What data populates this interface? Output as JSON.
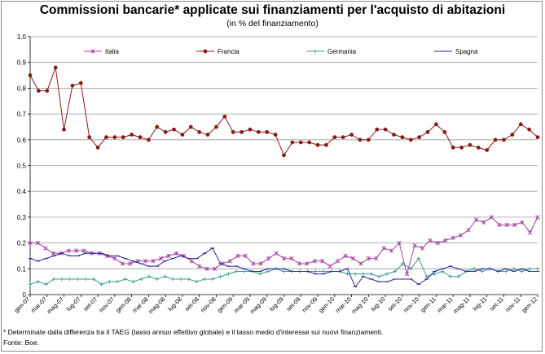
{
  "header": {
    "title": "Commissioni bancarie* applicate sui finanziamenti per l'acquisto di abitazioni",
    "subtitle": "(in % del finanziamento)"
  },
  "footer": {
    "note": "* Determinate dalla differenza tra il TAEG (tasso annuo effettivo globale) e il tasso medio d'interesse sui nuovi finanziamenti.",
    "source": "Fonte: Boe."
  },
  "chart_data": {
    "type": "line",
    "title": "Commissioni bancarie* applicate sui finanziamenti per l'acquisto di abitazioni",
    "subtitle": "(in % del finanziamento)",
    "xlabel": "",
    "ylabel": "",
    "ylim": [
      0,
      1
    ],
    "y_ticks": [
      "0",
      "0.1",
      "0.2",
      "0.3",
      "0.4",
      "0.5",
      "0.6",
      "0.7",
      "0.8",
      "0.9",
      "1.0"
    ],
    "grid": "horizontal",
    "legend_position": "top",
    "x_tick_labels": [
      "gen-07",
      "mar-07",
      "mag-07",
      "lug-07",
      "set-07",
      "nov-07",
      "gen-08",
      "mar-08",
      "mag-08",
      "lug-08",
      "set-08",
      "nov-08",
      "gen-09",
      "mar-09",
      "mag-09",
      "lug-09",
      "set-09",
      "nov-09",
      "gen-10",
      "mar-10",
      "mag-10",
      "lug-10",
      "set-10",
      "nov-10",
      "gen-11",
      "mar-11",
      "mag-11",
      "lug-11",
      "set-11",
      "nov-11",
      "gen-12"
    ],
    "series": [
      {
        "name": "Italia",
        "color": "#a040a0",
        "marker": "star",
        "values": [
          0.2,
          0.2,
          0.18,
          0.16,
          0.16,
          0.17,
          0.17,
          0.17,
          0.16,
          0.16,
          0.15,
          0.14,
          0.12,
          0.12,
          0.13,
          0.13,
          0.13,
          0.14,
          0.15,
          0.16,
          0.15,
          0.13,
          0.11,
          0.1,
          0.1,
          0.12,
          0.13,
          0.15,
          0.15,
          0.12,
          0.12,
          0.14,
          0.16,
          0.14,
          0.14,
          0.12,
          0.12,
          0.13,
          0.13,
          0.11,
          0.13,
          0.15,
          0.14,
          0.12,
          0.14,
          0.14,
          0.18,
          0.17,
          0.2,
          0.08,
          0.19,
          0.18,
          0.21,
          0.2,
          0.21,
          0.22,
          0.23,
          0.25,
          0.29,
          0.28,
          0.3,
          0.27,
          0.27,
          0.27,
          0.28,
          0.24,
          0.3
        ]
      },
      {
        "name": "Francia",
        "color": "#8b1a1a",
        "marker": "circle",
        "values": [
          0.85,
          0.79,
          0.79,
          0.88,
          0.64,
          0.81,
          0.82,
          0.61,
          0.57,
          0.61,
          0.61,
          0.61,
          0.62,
          0.61,
          0.6,
          0.65,
          0.63,
          0.64,
          0.62,
          0.65,
          0.63,
          0.62,
          0.65,
          0.69,
          0.63,
          0.63,
          0.64,
          0.63,
          0.63,
          0.62,
          0.54,
          0.59,
          0.59,
          0.59,
          0.58,
          0.58,
          0.61,
          0.61,
          0.62,
          0.6,
          0.6,
          0.64,
          0.64,
          0.62,
          0.61,
          0.6,
          0.61,
          0.63,
          0.66,
          0.63,
          0.57,
          0.57,
          0.58,
          0.57,
          0.56,
          0.6,
          0.6,
          0.62,
          0.66,
          0.64,
          0.61
        ]
      },
      {
        "name": "Germania",
        "color": "#3a9a8a",
        "marker": "plus",
        "values": [
          0.04,
          0.05,
          0.04,
          0.06,
          0.06,
          0.06,
          0.06,
          0.06,
          0.06,
          0.04,
          0.05,
          0.05,
          0.06,
          0.05,
          0.06,
          0.07,
          0.06,
          0.07,
          0.06,
          0.06,
          0.06,
          0.05,
          0.06,
          0.06,
          0.07,
          0.08,
          0.09,
          0.09,
          0.09,
          0.08,
          0.09,
          0.1,
          0.09,
          0.09,
          0.09,
          0.09,
          0.09,
          0.09,
          0.09,
          0.09,
          0.08,
          0.08,
          0.08,
          0.08,
          0.07,
          0.08,
          0.09,
          0.12,
          0.1,
          0.14,
          0.07,
          0.08,
          0.09,
          0.07,
          0.07,
          0.09,
          0.1,
          0.09,
          0.1,
          0.09,
          0.09,
          0.1,
          0.09,
          0.1,
          0.1
        ]
      },
      {
        "name": "Spagna",
        "color": "#2a2aa0",
        "marker": "dash",
        "values": [
          0.14,
          0.13,
          0.14,
          0.15,
          0.16,
          0.15,
          0.15,
          0.16,
          0.16,
          0.16,
          0.15,
          0.15,
          0.14,
          0.13,
          0.12,
          0.11,
          0.11,
          0.13,
          0.14,
          0.15,
          0.14,
          0.14,
          0.16,
          0.18,
          0.12,
          0.11,
          0.11,
          0.1,
          0.09,
          0.09,
          0.1,
          0.1,
          0.1,
          0.09,
          0.09,
          0.09,
          0.08,
          0.08,
          0.09,
          0.09,
          0.1,
          0.03,
          0.07,
          0.06,
          0.05,
          0.05,
          0.06,
          0.06,
          0.06,
          0.04,
          0.06,
          0.09,
          0.1,
          0.11,
          0.1,
          0.09,
          0.09,
          0.1,
          0.1,
          0.09,
          0.1,
          0.09,
          0.1,
          0.09,
          0.09
        ]
      }
    ]
  }
}
